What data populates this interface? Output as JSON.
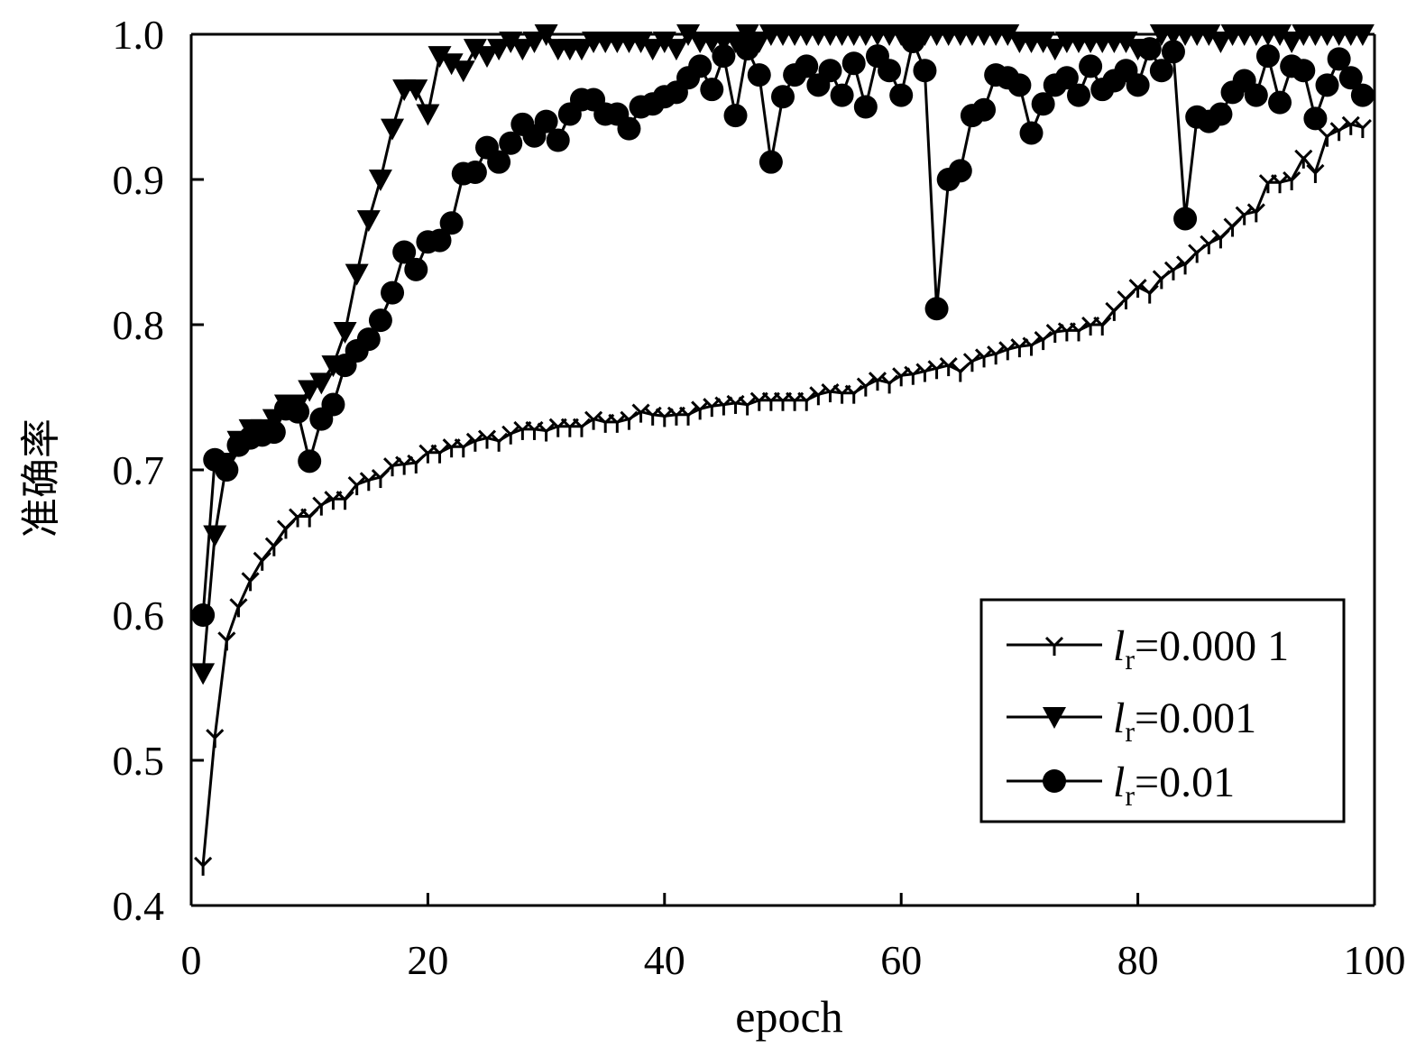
{
  "chart_data": {
    "type": "line",
    "xlabel": "epoch",
    "ylabel": "准确率",
    "xlim": [
      0,
      100
    ],
    "ylim": [
      0.4,
      1.0
    ],
    "xticks": [
      0,
      20,
      40,
      60,
      80,
      100
    ],
    "yticks": [
      0.4,
      0.5,
      0.6,
      0.7,
      0.8,
      0.9,
      1.0
    ],
    "xtick_labels": [
      "0",
      "20",
      "40",
      "60",
      "80",
      "100"
    ],
    "ytick_labels": [
      "0.4",
      "0.5",
      "0.6",
      "0.7",
      "0.8",
      "0.9",
      "1.0"
    ],
    "grid": false,
    "legend_position": "lower-right",
    "series": [
      {
        "name": "=0.000 1",
        "name_prefix": "l",
        "name_sub": "r",
        "marker": "tick",
        "x": [
          1,
          2,
          3,
          4,
          5,
          6,
          7,
          8,
          9,
          10,
          11,
          12,
          13,
          14,
          15,
          16,
          17,
          18,
          19,
          20,
          21,
          22,
          23,
          24,
          25,
          26,
          27,
          28,
          29,
          30,
          31,
          32,
          33,
          34,
          35,
          36,
          37,
          38,
          39,
          40,
          41,
          42,
          43,
          44,
          45,
          46,
          47,
          48,
          49,
          50,
          51,
          52,
          53,
          54,
          55,
          56,
          57,
          58,
          59,
          60,
          61,
          62,
          63,
          64,
          65,
          66,
          67,
          68,
          69,
          70,
          71,
          72,
          73,
          74,
          75,
          76,
          77,
          78,
          79,
          80,
          81,
          82,
          83,
          84,
          85,
          86,
          87,
          88,
          89,
          90,
          91,
          92,
          93,
          94,
          95,
          96,
          97,
          98,
          99
        ],
        "values": [
          0.428,
          0.516,
          0.583,
          0.606,
          0.624,
          0.638,
          0.648,
          0.66,
          0.668,
          0.668,
          0.676,
          0.68,
          0.68,
          0.69,
          0.693,
          0.695,
          0.703,
          0.704,
          0.705,
          0.712,
          0.712,
          0.716,
          0.716,
          0.72,
          0.722,
          0.72,
          0.725,
          0.728,
          0.728,
          0.727,
          0.73,
          0.73,
          0.73,
          0.735,
          0.733,
          0.733,
          0.735,
          0.74,
          0.738,
          0.737,
          0.738,
          0.738,
          0.742,
          0.744,
          0.745,
          0.746,
          0.745,
          0.748,
          0.748,
          0.748,
          0.748,
          0.748,
          0.752,
          0.754,
          0.753,
          0.753,
          0.758,
          0.762,
          0.76,
          0.765,
          0.766,
          0.768,
          0.77,
          0.772,
          0.768,
          0.775,
          0.778,
          0.78,
          0.783,
          0.785,
          0.786,
          0.79,
          0.795,
          0.796,
          0.796,
          0.8,
          0.8,
          0.81,
          0.818,
          0.826,
          0.822,
          0.832,
          0.838,
          0.842,
          0.85,
          0.856,
          0.86,
          0.868,
          0.876,
          0.878,
          0.898,
          0.898,
          0.9,
          0.915,
          0.905,
          0.93,
          0.934,
          0.938,
          0.936
        ]
      },
      {
        "name": "=0.001",
        "name_prefix": "l",
        "name_sub": "r",
        "marker": "triangle-down",
        "x": [
          1,
          2,
          3,
          4,
          5,
          6,
          7,
          8,
          9,
          10,
          11,
          12,
          13,
          14,
          15,
          16,
          17,
          18,
          19,
          20,
          21,
          22,
          23,
          24,
          25,
          26,
          27,
          28,
          29,
          30,
          31,
          32,
          33,
          34,
          35,
          36,
          37,
          38,
          39,
          40,
          41,
          42,
          43,
          44,
          45,
          46,
          47,
          48,
          49,
          50,
          51,
          52,
          53,
          54,
          55,
          56,
          57,
          58,
          59,
          60,
          61,
          62,
          63,
          64,
          65,
          66,
          67,
          68,
          69,
          70,
          71,
          72,
          73,
          74,
          75,
          76,
          77,
          78,
          79,
          80,
          81,
          82,
          83,
          84,
          85,
          86,
          87,
          88,
          89,
          90,
          91,
          92,
          93,
          94,
          95,
          96,
          97,
          98,
          99
        ],
        "values": [
          0.56,
          0.655,
          0.705,
          0.72,
          0.728,
          0.728,
          0.735,
          0.745,
          0.745,
          0.755,
          0.76,
          0.772,
          0.795,
          0.835,
          0.872,
          0.9,
          0.935,
          0.962,
          0.962,
          0.945,
          0.985,
          0.98,
          0.975,
          0.99,
          0.985,
          0.99,
          0.995,
          0.99,
          0.995,
          1.0,
          0.99,
          0.99,
          0.99,
          0.995,
          0.995,
          0.995,
          0.995,
          0.995,
          0.99,
          0.995,
          0.99,
          1.0,
          0.995,
          0.995,
          0.995,
          0.995,
          1.0,
          0.995,
          1.0,
          1.0,
          1.0,
          1.0,
          1.0,
          1.0,
          1.0,
          1.0,
          1.0,
          1.0,
          1.0,
          1.0,
          1.0,
          1.0,
          1.0,
          1.0,
          1.0,
          1.0,
          1.0,
          1.0,
          1.0,
          0.995,
          0.995,
          0.995,
          0.99,
          0.995,
          0.995,
          0.995,
          0.995,
          0.995,
          0.995,
          0.99,
          0.99,
          1.0,
          1.0,
          1.0,
          1.0,
          1.0,
          0.995,
          1.0,
          1.0,
          1.0,
          1.0,
          1.0,
          0.995,
          1.0,
          1.0,
          1.0,
          1.0,
          1.0,
          1.0
        ]
      },
      {
        "name": "=0.01",
        "name_prefix": "l",
        "name_sub": "r",
        "marker": "circle",
        "x": [
          1,
          2,
          3,
          4,
          5,
          6,
          7,
          8,
          9,
          10,
          11,
          12,
          13,
          14,
          15,
          16,
          17,
          18,
          19,
          20,
          21,
          22,
          23,
          24,
          25,
          26,
          27,
          28,
          29,
          30,
          31,
          32,
          33,
          34,
          35,
          36,
          37,
          38,
          39,
          40,
          41,
          42,
          43,
          44,
          45,
          46,
          47,
          48,
          49,
          50,
          51,
          52,
          53,
          54,
          55,
          56,
          57,
          58,
          59,
          60,
          61,
          62,
          63,
          64,
          65,
          66,
          67,
          68,
          69,
          70,
          71,
          72,
          73,
          74,
          75,
          76,
          77,
          78,
          79,
          80,
          81,
          82,
          83,
          84,
          85,
          86,
          87,
          88,
          89,
          90,
          91,
          92,
          93,
          94,
          95,
          96,
          97,
          98,
          99
        ],
        "values": [
          0.6,
          0.707,
          0.7,
          0.717,
          0.722,
          0.724,
          0.726,
          0.742,
          0.74,
          0.706,
          0.735,
          0.745,
          0.772,
          0.782,
          0.79,
          0.803,
          0.822,
          0.85,
          0.838,
          0.857,
          0.858,
          0.87,
          0.904,
          0.905,
          0.922,
          0.912,
          0.925,
          0.938,
          0.93,
          0.94,
          0.927,
          0.945,
          0.955,
          0.955,
          0.945,
          0.945,
          0.935,
          0.95,
          0.952,
          0.957,
          0.96,
          0.97,
          0.978,
          0.962,
          0.985,
          0.944,
          0.99,
          0.972,
          0.912,
          0.957,
          0.972,
          0.978,
          0.965,
          0.975,
          0.958,
          0.98,
          0.95,
          0.985,
          0.975,
          0.958,
          0.995,
          0.975,
          0.811,
          0.9,
          0.906,
          0.944,
          0.948,
          0.972,
          0.97,
          0.965,
          0.932,
          0.952,
          0.965,
          0.97,
          0.958,
          0.978,
          0.962,
          0.968,
          0.975,
          0.965,
          0.99,
          0.975,
          0.988,
          0.873,
          0.943,
          0.94,
          0.945,
          0.96,
          0.968,
          0.958,
          0.985,
          0.953,
          0.978,
          0.975,
          0.942,
          0.965,
          0.983,
          0.97,
          0.958
        ]
      }
    ]
  }
}
